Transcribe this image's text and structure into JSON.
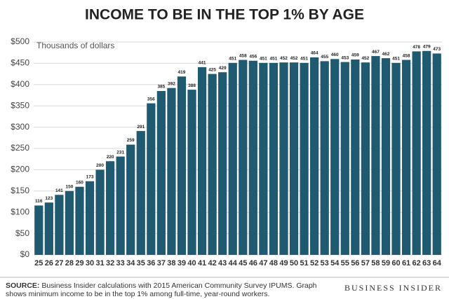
{
  "chart_data": {
    "type": "bar",
    "title": "INCOME TO BE IN THE TOP 1% BY AGE",
    "y_axis_label": "Thousands of dollars",
    "categories": [
      "25",
      "26",
      "27",
      "28",
      "29",
      "30",
      "31",
      "32",
      "33",
      "34",
      "35",
      "36",
      "37",
      "38",
      "39",
      "40",
      "41",
      "42",
      "43",
      "44",
      "45",
      "46",
      "47",
      "48",
      "49",
      "50",
      "51",
      "52",
      "53",
      "54",
      "55",
      "56",
      "57",
      "58",
      "59",
      "60",
      "61",
      "62",
      "63",
      "64"
    ],
    "values": [
      116,
      123,
      141,
      150,
      160,
      173,
      200,
      220,
      231,
      259,
      291,
      356,
      385,
      392,
      419,
      388,
      441,
      425,
      429,
      451,
      458,
      456,
      451,
      451,
      452,
      452,
      451,
      464,
      455,
      460,
      453,
      459,
      452,
      467,
      462,
      451,
      458,
      478,
      479,
      473
    ],
    "color": "#1f5a70",
    "ylim": [
      0,
      500
    ],
    "yticks": [
      {
        "value": 0,
        "label": "$0"
      },
      {
        "value": 50,
        "label": "$50"
      },
      {
        "value": 100,
        "label": "$100"
      },
      {
        "value": 150,
        "label": "$150"
      },
      {
        "value": 200,
        "label": "$200"
      },
      {
        "value": 250,
        "label": "$250"
      },
      {
        "value": 300,
        "label": "$300"
      },
      {
        "value": 350,
        "label": "$350"
      },
      {
        "value": 400,
        "label": "$400"
      },
      {
        "value": 450,
        "label": "$450"
      },
      {
        "value": 500,
        "label": "$500"
      }
    ],
    "grid": true,
    "source_label": "SOURCE:",
    "source": "Business Insider calculations with 2015 American Community Survey IPUMS. Graph shows minimum income to be in the top 1% among full-time, year-round workers.",
    "brand": "BUSINESS INSIDER"
  }
}
